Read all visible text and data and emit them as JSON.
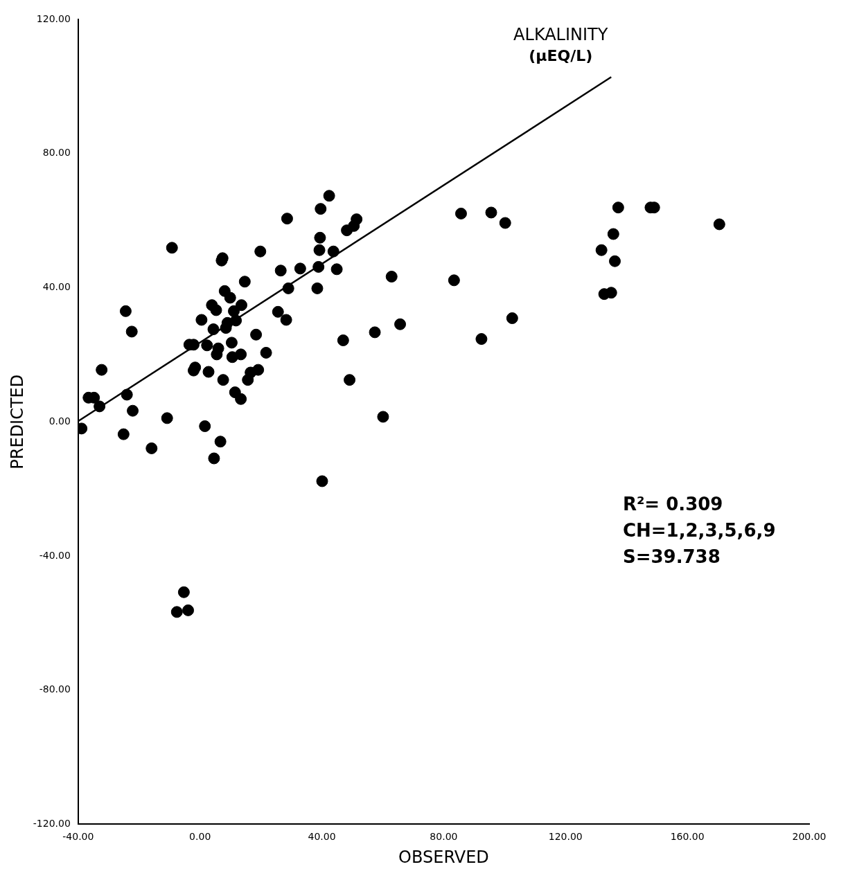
{
  "chart_data": {
    "type": "scatter",
    "title": "ALKALINITY",
    "subtitle": "(µEQ/L)",
    "xlabel": "OBSERVED",
    "ylabel": "PREDICTED",
    "xlim": [
      -40,
      200
    ],
    "xticks": [
      {
        "value": -40,
        "label": "-40.00"
      },
      {
        "value": 0,
        "label": "0.00"
      },
      {
        "value": 40,
        "label": "40.00"
      },
      {
        "value": 80,
        "label": "80.00"
      },
      {
        "value": 120,
        "label": "120.00"
      },
      {
        "value": 160,
        "label": "160.00"
      },
      {
        "value": 200,
        "label": "200.00"
      }
    ],
    "ylim": [
      -120,
      120
    ],
    "yticks": [
      {
        "value": -120,
        "label": "-120.00"
      },
      {
        "value": -80,
        "label": "-80.00"
      },
      {
        "value": -40,
        "label": "-40.00"
      },
      {
        "value": 0,
        "label": "0.00"
      },
      {
        "value": 40,
        "label": "40.00"
      },
      {
        "value": 80,
        "label": "80.00"
      },
      {
        "value": 120,
        "label": "120.00"
      }
    ],
    "grid": false,
    "legend": false,
    "marker": "circle",
    "annotations": [
      "R²= 0.309",
      "CH=1,2,3,5,6,9",
      "S=39.738"
    ],
    "series": [
      {
        "type": "scatter",
        "color": "#000000",
        "x": [
          -38.9,
          -36.6,
          -34.8,
          -33.0,
          -32.3,
          -25.1,
          -24.4,
          -24.0,
          -22.4,
          -22.1,
          -15.9,
          -10.8,
          -9.2,
          -5.3,
          -7.6,
          -3.9,
          -3.5,
          -2.1,
          -1.6,
          -2.1,
          0.5,
          1.6,
          2.8,
          2.3,
          3.9,
          4.4,
          4.6,
          5.3,
          5.5,
          6.0,
          6.7,
          7.1,
          7.4,
          7.6,
          8.1,
          8.5,
          9.0,
          9.9,
          10.4,
          10.6,
          11.1,
          11.5,
          11.8,
          13.4,
          13.4,
          13.6,
          14.7,
          15.7,
          16.6,
          18.4,
          19.1,
          19.8,
          21.7,
          25.6,
          26.5,
          28.3,
          28.6,
          29.0,
          32.9,
          38.5,
          38.9,
          39.2,
          39.4,
          39.6,
          40.1,
          42.4,
          43.8,
          44.9,
          47.0,
          48.2,
          49.1,
          50.5,
          51.4,
          57.4,
          60.1,
          62.9,
          65.7,
          83.4,
          85.7,
          92.4,
          95.6,
          100.2,
          102.5,
          131.8,
          132.7,
          135.0,
          135.7,
          136.2,
          137.3,
          147.9,
          149.1,
          170.5
        ],
        "values": [
          -2.0,
          7.2,
          7.2,
          4.6,
          15.5,
          -3.7,
          33.0,
          8.1,
          26.9,
          3.3,
          -7.9,
          1.1,
          51.9,
          -50.8,
          -56.7,
          -56.2,
          23.0,
          23.0,
          16.2,
          15.3,
          30.4,
          -1.3,
          14.9,
          22.8,
          34.8,
          27.6,
          -10.9,
          33.3,
          20.1,
          21.9,
          -5.9,
          48.1,
          48.8,
          12.5,
          39.0,
          28.0,
          29.5,
          37.0,
          23.6,
          19.3,
          33.0,
          8.8,
          30.2,
          20.1,
          6.8,
          34.8,
          41.8,
          12.5,
          14.7,
          26.0,
          15.5,
          50.8,
          20.6,
          32.8,
          45.1,
          30.4,
          60.6,
          39.8,
          45.7,
          39.8,
          46.2,
          51.2,
          54.9,
          63.5,
          -17.7,
          67.4,
          50.8,
          45.5,
          24.3,
          57.1,
          12.5,
          58.4,
          60.4,
          26.7,
          1.5,
          43.3,
          29.1,
          42.2,
          62.1,
          24.7,
          62.4,
          59.3,
          30.9,
          51.2,
          38.1,
          38.5,
          56.0,
          47.9,
          63.9,
          63.9,
          63.9,
          58.9
        ]
      },
      {
        "type": "line",
        "color": "#000000",
        "marker": "none",
        "line_style": "solid",
        "x": [
          -40,
          135
        ],
        "values": [
          0.2,
          102.8
        ]
      }
    ]
  }
}
